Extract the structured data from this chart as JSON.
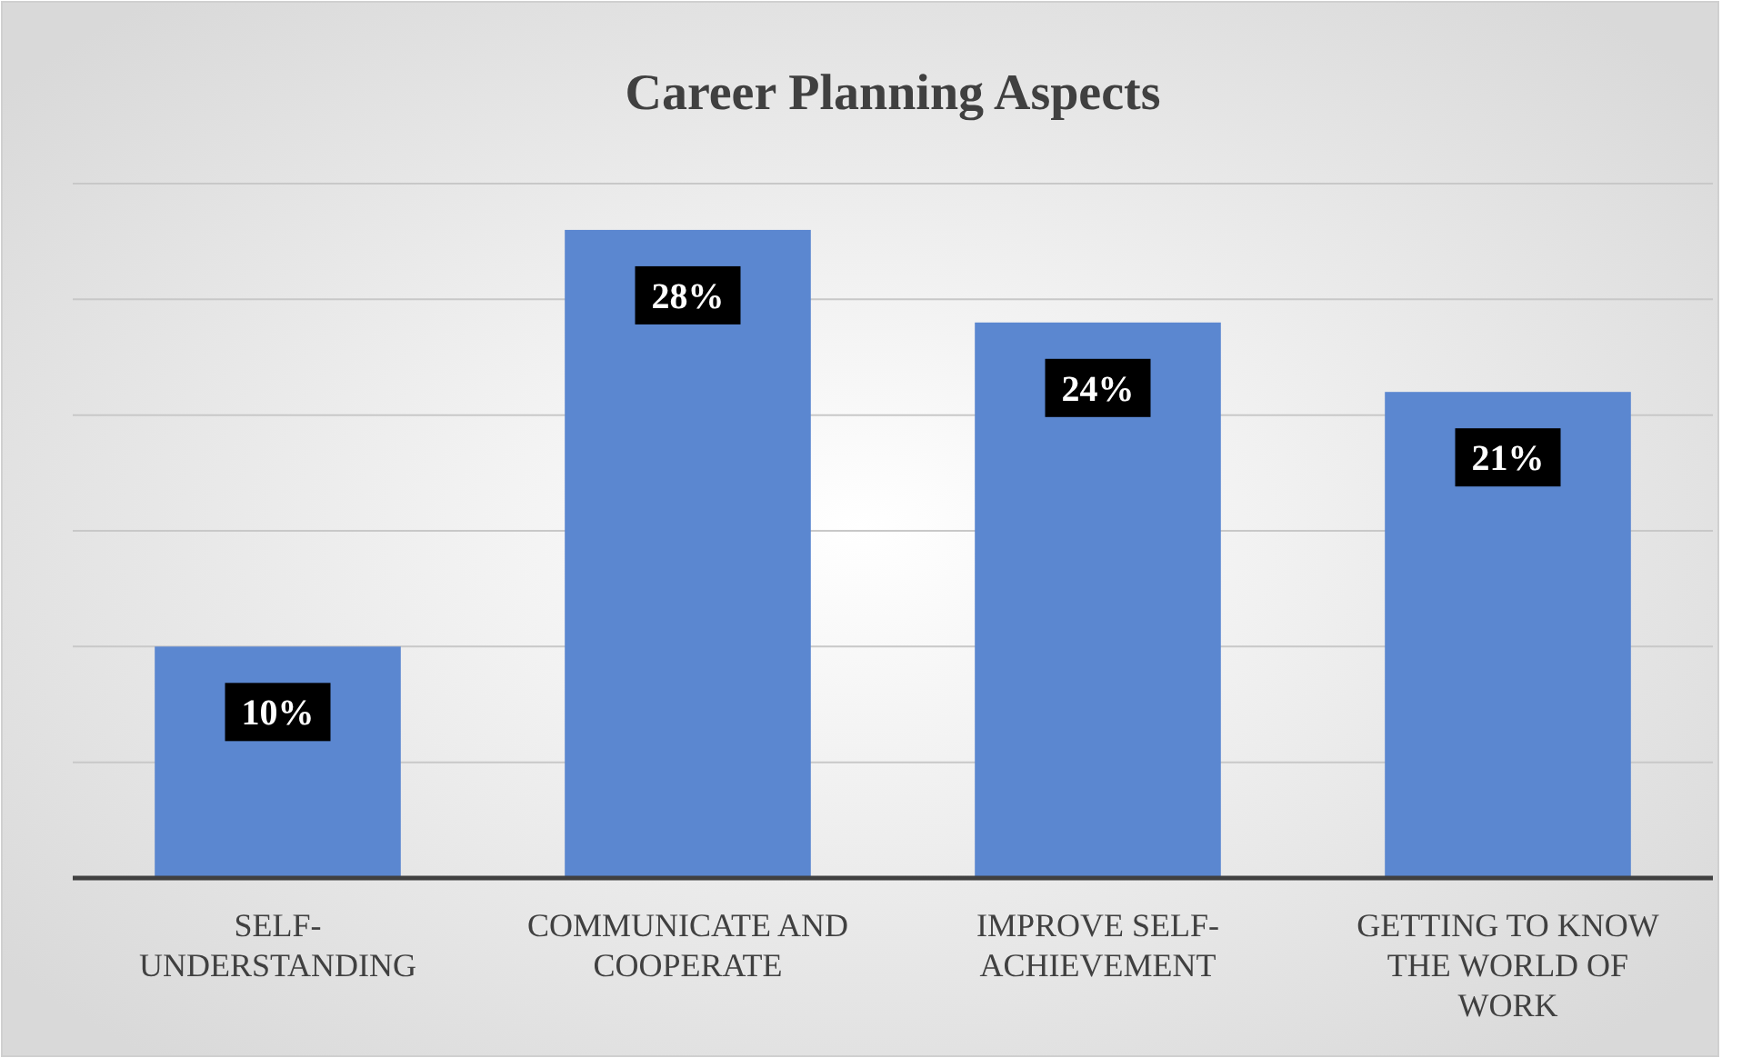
{
  "chart_data": {
    "type": "bar",
    "title": "Career Planning Aspects",
    "categories": [
      "SELF-UNDERSTANDING",
      "COMMUNICATE AND COOPERATE",
      "IMPROVE SELF-ACHIEVEMENT",
      "GETTING TO KNOW THE WORLD OF WORK"
    ],
    "values": [
      10,
      28,
      24,
      21
    ],
    "value_labels": [
      "10%",
      "28%",
      "24%",
      "21%"
    ],
    "color": "#5b87d0",
    "ylim": [
      0,
      30
    ],
    "yticks": [
      {
        "value": 0,
        "label": null
      },
      {
        "value": 5,
        "label": null
      },
      {
        "value": 10,
        "label": null
      },
      {
        "value": 15,
        "label": null
      },
      {
        "value": 20,
        "label": null
      },
      {
        "value": 25,
        "label": null
      },
      {
        "value": 30,
        "label": null
      }
    ],
    "tick_labels": "x",
    "grid": "y"
  }
}
